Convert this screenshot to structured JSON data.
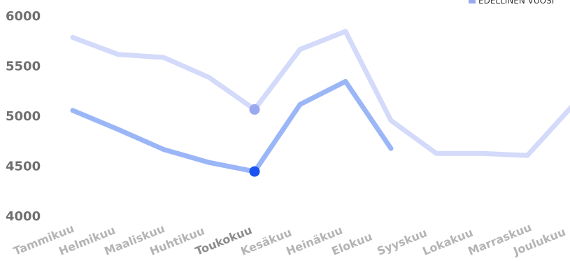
{
  "chart_data": {
    "type": "line",
    "categories": [
      "Tammikuu",
      "Helmikuu",
      "Maaliskuu",
      "Huhtikuu",
      "Toukokuu",
      "Kesäkuu",
      "Heinäkuu",
      "Elokuu",
      "Syyskuu",
      "Lokakuu",
      "Marraskuu",
      "Joulukuu"
    ],
    "highlight_category": "Toukokuu",
    "ylim": [
      4000,
      6000
    ],
    "yticks": [
      "4000",
      "4500",
      "5000",
      "5500",
      "6000"
    ],
    "grid": false,
    "legend_position": "top-right",
    "series": [
      {
        "key": "previous",
        "name": "EDELLINEN VUOSI",
        "color": "#d3dafa",
        "marker_color": "#9aa8ee",
        "values": [
          5780,
          5610,
          5580,
          5380,
          5060,
          5660,
          5840,
          4950,
          4620,
          4620,
          4600,
          5100
        ]
      },
      {
        "key": "current",
        "name": "",
        "color": "#9bb6f7",
        "marker_color": "#1b52f0",
        "values": [
          5050,
          4860,
          4660,
          4530,
          4440,
          5110,
          5340,
          4670,
          null,
          null,
          null,
          null
        ]
      }
    ]
  }
}
